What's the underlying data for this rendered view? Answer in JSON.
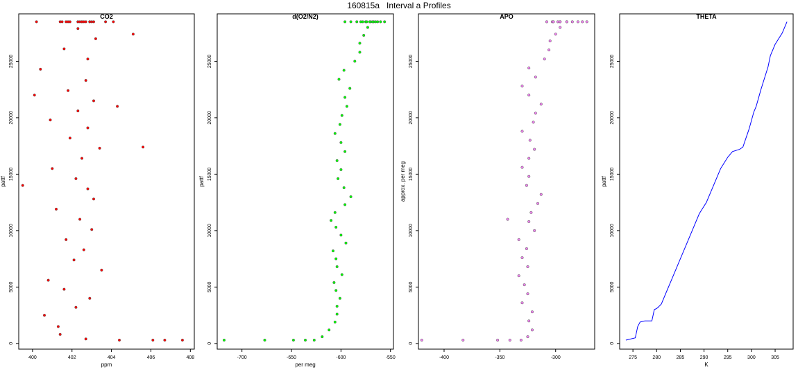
{
  "figure_title": "160815a   Interval a Profiles",
  "chart_data": [
    {
      "type": "scatter",
      "title": "CO2",
      "xlabel": "ppm",
      "ylabel": "pattf",
      "color": "#ff0000",
      "xlim": [
        399.3,
        408.2
      ],
      "ylim": [
        -500,
        29200
      ],
      "xticks": [
        400,
        402,
        404,
        406,
        408
      ],
      "yticks": [
        0,
        5000,
        10000,
        15000,
        20000,
        25000
      ],
      "series": [
        {
          "x": [
            404.4,
            406.1,
            406.7,
            407.6,
            402.7,
            401.4,
            401.3,
            400.6,
            402.2,
            402.9,
            401.6,
            400.8,
            403.5,
            402.1,
            402.6,
            399.5,
            401.7,
            403.0,
            402.4,
            401.2,
            403.1,
            402.8,
            402.2,
            401.0,
            402.5,
            403.4,
            401.9,
            402.8,
            404.3,
            400.9,
            402.3,
            403.1,
            401.8,
            402.7,
            405.6,
            400.4,
            402.8,
            401.6,
            403.2,
            402.3,
            400.1,
            402.7,
            401.7,
            403.0,
            402.5,
            401.9,
            402.9,
            402.3,
            400.2,
            401.4,
            401.8,
            402.6,
            403.7,
            402.3,
            402.9,
            405.1,
            404.1,
            402.4,
            403.1,
            402.5,
            401.5
          ],
          "y": [
            300,
            300,
            300,
            300,
            400,
            800,
            1500,
            2500,
            3200,
            4000,
            4800,
            5600,
            6500,
            7400,
            8300,
            14000,
            9200,
            10100,
            11000,
            11900,
            12800,
            13700,
            14600,
            15500,
            16400,
            17300,
            18200,
            19100,
            21000,
            19800,
            20600,
            21500,
            22400,
            23300,
            17400,
            24300,
            25200,
            26100,
            27000,
            27900,
            22000,
            28500,
            28500,
            28500,
            28500,
            28500,
            28500,
            28500,
            28500,
            28500,
            28500,
            28500,
            28500,
            28500,
            28500,
            27400,
            28500,
            28500,
            28500,
            28500,
            28500
          ]
        }
      ]
    },
    {
      "type": "scatter",
      "title": "d(O2/N2)",
      "xlabel": "per meg",
      "ylabel": "pattf",
      "color": "#00ff00",
      "xlim": [
        -725,
        -547
      ],
      "ylim": [
        -500,
        29200
      ],
      "xticks": [
        -700,
        -650,
        -600,
        -550
      ],
      "yticks": [
        0,
        5000,
        10000,
        15000,
        20000,
        25000
      ],
      "series": [
        {
          "x": [
            -718,
            -677,
            -648,
            -636,
            -627,
            -619,
            -612,
            -606,
            -604,
            -604,
            -601,
            -605,
            -607,
            -599,
            -604,
            -605,
            -608,
            -595,
            -600,
            -605,
            -610,
            -606,
            -596,
            -590,
            -597,
            -603,
            -600,
            -604,
            -596,
            -600,
            -606,
            -601,
            -599,
            -594,
            -596,
            -591,
            -602,
            -597,
            -586,
            -581,
            -581,
            -577,
            -573,
            -570,
            -567,
            -575,
            -571,
            -580,
            -565,
            -560,
            -556,
            -568,
            -574,
            -563,
            -578,
            -584,
            -590,
            -596
          ],
          "y": [
            300,
            300,
            300,
            300,
            300,
            600,
            1200,
            1900,
            2600,
            3300,
            4000,
            4700,
            5400,
            6100,
            6800,
            7500,
            8200,
            8900,
            9600,
            10300,
            10900,
            11600,
            12300,
            13000,
            13800,
            14600,
            15400,
            16200,
            17000,
            17800,
            18600,
            19400,
            20200,
            21000,
            21800,
            22600,
            23400,
            24200,
            25000,
            25800,
            26600,
            27300,
            28000,
            28500,
            28500,
            28500,
            28500,
            28500,
            28500,
            28500,
            28500,
            28500,
            28500,
            28500,
            28500,
            28500,
            28500,
            28500
          ]
        }
      ]
    },
    {
      "type": "scatter",
      "title": "APO",
      "xlabel": "",
      "ylabel": "approx. per meg",
      "color": "#ee82ee",
      "xlim": [
        -423,
        -265
      ],
      "ylim": [
        -500,
        29200
      ],
      "xticks": [
        -400,
        -350,
        -300
      ],
      "yticks": [
        0,
        5000,
        10000,
        15000,
        20000,
        25000
      ],
      "series": [
        {
          "x": [
            -420,
            -383,
            -352,
            -341,
            -331,
            -325,
            -321,
            -324,
            -321,
            -330,
            -325,
            -328,
            -333,
            -325,
            -330,
            -326,
            -333,
            -319,
            -324,
            -343,
            -322,
            -316,
            -313,
            -326,
            -324,
            -330,
            -324,
            -319,
            -323,
            -330,
            -320,
            -318,
            -313,
            -324,
            -330,
            -318,
            -324,
            -310,
            -306,
            -305,
            -300,
            -296,
            -296,
            -290,
            -285,
            -298,
            -303,
            -280,
            -276,
            -272,
            -290,
            -296,
            -302,
            -308
          ],
          "y": [
            300,
            300,
            300,
            300,
            300,
            600,
            1200,
            2000,
            2800,
            3600,
            4400,
            5200,
            6000,
            6800,
            7600,
            8400,
            9200,
            10000,
            10800,
            11000,
            11600,
            12400,
            13200,
            14000,
            14800,
            15600,
            16400,
            17200,
            18000,
            18800,
            19600,
            20400,
            21200,
            22000,
            22800,
            23600,
            24400,
            25200,
            26000,
            26800,
            27400,
            28000,
            28500,
            28500,
            28500,
            28500,
            28500,
            28500,
            28500,
            28500,
            28500,
            28500,
            28500,
            28500
          ]
        }
      ]
    },
    {
      "type": "line",
      "title": "THETA",
      "xlabel": "K",
      "ylabel": "pattf",
      "color": "#0000ff",
      "xlim": [
        272.2,
        308.8
      ],
      "ylim": [
        -500,
        29200
      ],
      "xticks": [
        275,
        280,
        285,
        290,
        295,
        300,
        305
      ],
      "yticks": [
        0,
        5000,
        10000,
        15000,
        20000,
        25000
      ],
      "series": [
        {
          "x": [
            273.5,
            275.5,
            276.0,
            276.5,
            277.5,
            279.0,
            279.5,
            280.0,
            280.3,
            281.0,
            282.0,
            283.0,
            284.5,
            286.0,
            287.5,
            289.0,
            290.5,
            291.5,
            292.5,
            293.5,
            295.0,
            296.0,
            297.5,
            298.2,
            299.5,
            300.5,
            301.0,
            302.0,
            303.5,
            304.0,
            305.0,
            306.5,
            307.5
          ],
          "y": [
            300,
            500,
            1500,
            1900,
            2000,
            2000,
            3000,
            3100,
            3200,
            3500,
            4500,
            5500,
            7000,
            8500,
            10000,
            11500,
            12500,
            13500,
            14500,
            15500,
            16500,
            17000,
            17200,
            17400,
            19000,
            20500,
            21000,
            22500,
            24500,
            25500,
            26500,
            27500,
            28500
          ]
        }
      ]
    }
  ]
}
